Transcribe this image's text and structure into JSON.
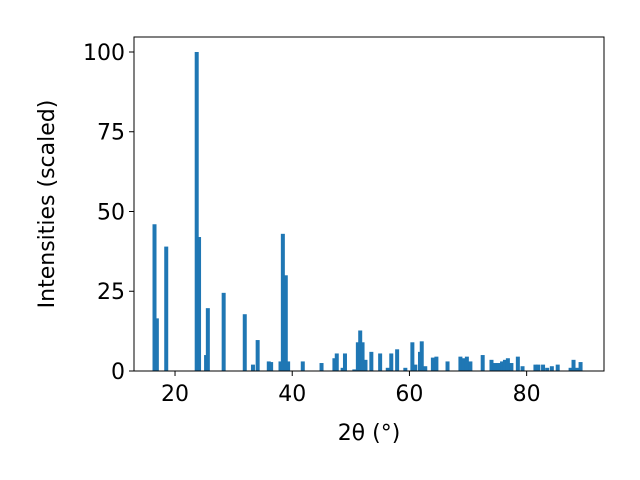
{
  "chart_data": {
    "type": "bar",
    "xlabel": "2θ (°)",
    "ylabel": "Intensities (scaled)",
    "color": "#1f77b4",
    "x": [
      16.5,
      16.9,
      18.5,
      23.7,
      24.1,
      25.3,
      25.6,
      28.3,
      31.9,
      33.3,
      34.1,
      36.0,
      36.4,
      38.0,
      38.4,
      38.9,
      39.3,
      41.8,
      45.0,
      47.2,
      47.6,
      48.6,
      49.0,
      50.6,
      51.2,
      51.6,
      52.0,
      52.5,
      53.5,
      55.0,
      56.3,
      56.9,
      57.9,
      59.3,
      60.5,
      61.0,
      61.8,
      62.1,
      62.7,
      64.0,
      64.6,
      66.5,
      68.7,
      69.3,
      69.8,
      70.4,
      72.5,
      74.0,
      74.6,
      75.2,
      75.8,
      76.3,
      76.8,
      77.4,
      78.5,
      79.3,
      81.5,
      82.0,
      82.8,
      83.5,
      84.3,
      85.3,
      87.5,
      88.0,
      88.6,
      89.2
    ],
    "values": [
      46,
      16.5,
      39,
      100,
      42,
      5,
      19.7,
      24.5,
      17.8,
      2,
      9.7,
      3,
      2.8,
      3,
      43,
      30,
      3,
      3,
      2.5,
      4,
      5.5,
      1,
      5.5,
      0.5,
      9,
      12.7,
      9,
      3.5,
      6,
      5.5,
      1,
      5.5,
      6.8,
      1,
      9,
      2,
      6,
      9.3,
      1.5,
      4.2,
      4.5,
      3,
      4.5,
      4,
      4.5,
      3,
      5,
      3.5,
      2.5,
      2.5,
      3,
      3.5,
      4,
      2.5,
      4.5,
      1.5,
      2,
      2,
      2,
      1,
      1.5,
      2,
      1,
      3.5,
      1,
      2.8
    ],
    "xlim": [
      13,
      93.2
    ],
    "ylim": [
      0,
      104.7
    ],
    "xticks": [
      20,
      40,
      60,
      80
    ],
    "yticks": [
      0,
      25,
      50,
      75,
      100
    ]
  }
}
